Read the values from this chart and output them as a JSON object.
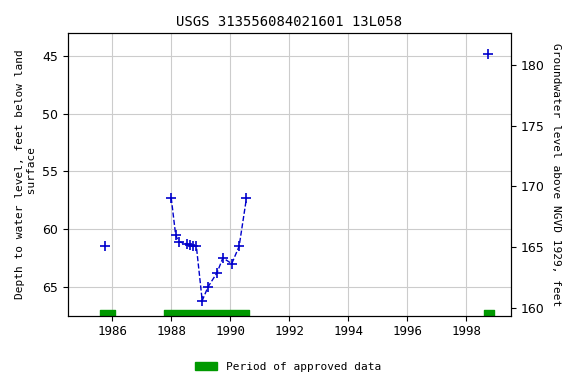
{
  "title": "USGS 313556084021601 13L058",
  "ylabel_left": "Depth to water level, feet below land\n surface",
  "ylabel_right": "Groundwater level above NGVD 1929, feet",
  "ylim_left": [
    67.5,
    43.0
  ],
  "ylim_right": [
    159.375,
    182.625
  ],
  "xlim": [
    1984.5,
    1999.5
  ],
  "xticks": [
    1986,
    1988,
    1990,
    1992,
    1994,
    1996,
    1998
  ],
  "yticks_left": [
    45,
    50,
    55,
    60,
    65
  ],
  "yticks_right": [
    160,
    165,
    170,
    175,
    180
  ],
  "segments": [
    {
      "x": [
        1985.75
      ],
      "y": [
        61.5
      ]
    },
    {
      "x": [
        1988.0,
        1988.15,
        1988.25,
        1988.55,
        1988.65,
        1988.75,
        1988.85,
        1989.05,
        1989.25,
        1989.55,
        1989.75,
        1990.05,
        1990.3,
        1990.55
      ],
      "y": [
        57.3,
        60.5,
        61.1,
        61.3,
        61.4,
        61.5,
        61.45,
        66.2,
        65.0,
        63.8,
        62.5,
        63.0,
        61.5,
        57.3
      ]
    },
    {
      "x": [
        1998.72
      ],
      "y": [
        44.8
      ]
    }
  ],
  "line_color": "#0000CC",
  "line_style": "--",
  "marker": "+",
  "marker_size": 7,
  "marker_linewidth": 1.2,
  "line_width": 1.0,
  "approved_bars": [
    {
      "x_start": 1985.58,
      "x_end": 1986.08
    },
    {
      "x_start": 1987.75,
      "x_end": 1990.62
    },
    {
      "x_start": 1998.58,
      "x_end": 1998.92
    }
  ],
  "approved_color": "#009900",
  "approved_bar_ymin": 67.0,
  "approved_bar_ymax": 67.5,
  "legend_label": "Period of approved data",
  "bg_color": "#ffffff",
  "grid_color": "#cccccc",
  "font_family": "monospace",
  "title_fontsize": 10,
  "axis_fontsize": 8,
  "tick_fontsize": 9
}
